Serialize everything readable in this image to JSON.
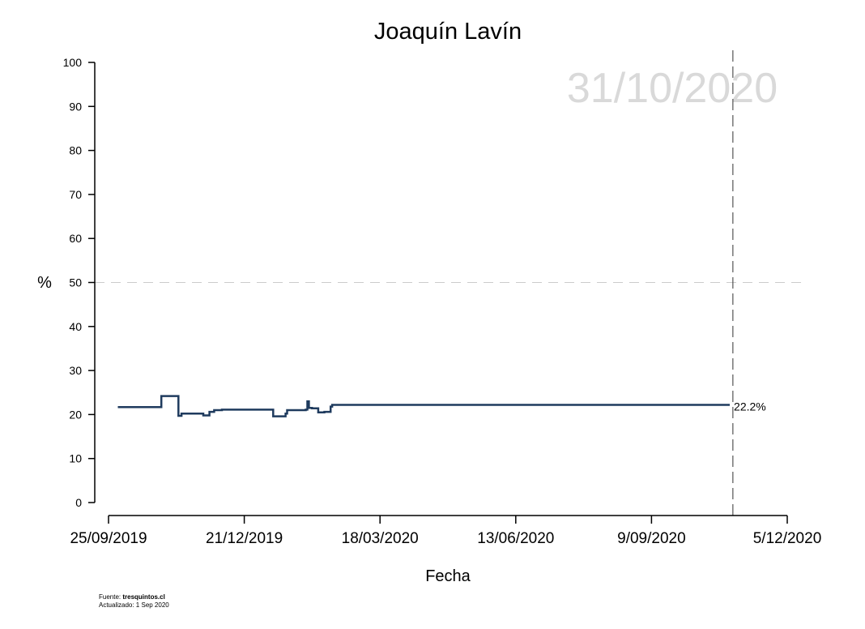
{
  "chart_data": {
    "type": "line",
    "title": "Joaquín Lavín",
    "xlabel": "Fecha",
    "ylabel": "%",
    "watermark": "31/10/2020",
    "x_tick_labels": [
      "25/09/2019",
      "21/12/2019",
      "18/03/2020",
      "13/06/2020",
      "9/09/2020",
      "5/12/2020"
    ],
    "y_tick_labels": [
      "0",
      "10",
      "20",
      "30",
      "40",
      "50",
      "60",
      "70",
      "80",
      "90",
      "100"
    ],
    "xlim": [
      "2019-09-25",
      "2020-12-05"
    ],
    "ylim": [
      0,
      100
    ],
    "reference_line_y": 50,
    "reference_line_x": "2020-10-31",
    "end_label": "22.2%",
    "series_color": "#1f3b5e",
    "step": true,
    "series": [
      {
        "x": [
          "2019-10-01",
          "2019-10-29",
          "2019-11-09",
          "2019-11-11",
          "2019-11-25",
          "2019-11-29",
          "2019-12-02",
          "2019-12-07",
          "2020-01-09",
          "2020-01-17",
          "2020-01-18",
          "2020-01-30",
          "2020-01-31",
          "2020-02-01",
          "2020-02-03",
          "2020-02-07",
          "2020-02-11",
          "2020-02-15",
          "2020-02-16",
          "2020-02-25",
          "2020-10-29"
        ],
        "y": [
          21.7,
          24.2,
          19.7,
          20.2,
          19.8,
          20.6,
          21.0,
          21.1,
          19.6,
          20.2,
          21.0,
          21.1,
          23.0,
          21.5,
          21.4,
          20.5,
          20.6,
          21.8,
          22.2,
          22.2,
          22.2
        ]
      }
    ]
  },
  "footer": {
    "source_prefix": "Fuente: ",
    "source_name": "tresquintos.cl",
    "updated": "Actualizado: 1 Sep 2020"
  }
}
